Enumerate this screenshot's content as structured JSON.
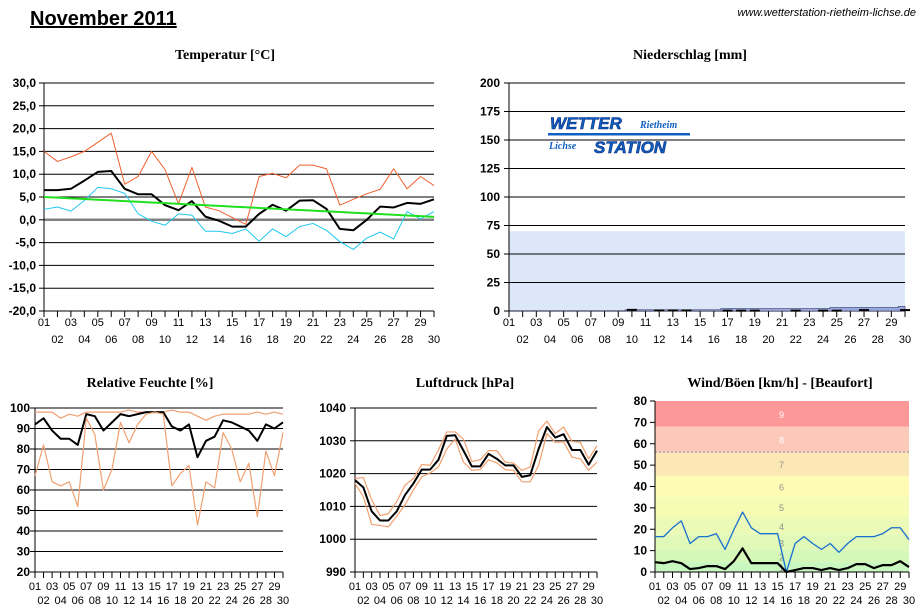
{
  "header": {
    "title": "November 2011",
    "url": "www.wetterstation-rietheim-lichse.de"
  },
  "logo": {
    "line1_big": "WETTER",
    "line1_small": "Rietheim",
    "line2_small": "Lichse",
    "line2_big": "STATION",
    "color": "#1060c0"
  },
  "chart_data": [
    {
      "id": "temperature",
      "type": "line",
      "title": "Temperatur [°C]",
      "xlabel": "",
      "ylabel": "",
      "x": [
        "01",
        "02",
        "03",
        "04",
        "05",
        "06",
        "07",
        "08",
        "09",
        "10",
        "11",
        "12",
        "13",
        "14",
        "15",
        "16",
        "17",
        "18",
        "19",
        "20",
        "21",
        "22",
        "23",
        "24",
        "25",
        "26",
        "27",
        "28",
        "29",
        "30"
      ],
      "ylim": [
        -20,
        30
      ],
      "yticks": [
        "30,0",
        "25,0",
        "20,0",
        "15,0",
        "10,0",
        "5,0",
        "0,0",
        "-5,0",
        "-10,0",
        "-15,0",
        "-20,0"
      ],
      "grid": true,
      "series": [
        {
          "name": "max",
          "color": "#f06030",
          "values": [
            15.0,
            12.8,
            13.8,
            15.0,
            17.0,
            19.0,
            7.8,
            9.5,
            15.0,
            11.0,
            3.5,
            11.5,
            2.8,
            2.0,
            0.5,
            -1.0,
            9.5,
            10.2,
            9.2,
            12.0,
            12.0,
            11.2,
            3.2,
            4.5,
            5.7,
            6.7,
            11.2,
            6.8,
            9.5,
            7.5
          ]
        },
        {
          "name": "mean",
          "color": "#000000",
          "values": [
            6.5,
            6.5,
            6.8,
            8.6,
            10.5,
            10.7,
            6.8,
            5.6,
            5.6,
            3.2,
            2.1,
            4.1,
            0.7,
            -0.2,
            -1.5,
            -1.5,
            1.3,
            3.3,
            2.0,
            4.2,
            4.3,
            2.4,
            -2.0,
            -2.3,
            0.0,
            2.9,
            2.7,
            3.7,
            3.5,
            4.5
          ]
        },
        {
          "name": "min",
          "color": "#20c8f0",
          "values": [
            2.3,
            2.8,
            1.9,
            4.2,
            7.1,
            6.8,
            5.8,
            1.3,
            -0.3,
            -1.2,
            1.3,
            1.0,
            -2.5,
            -2.5,
            -3.0,
            -2.0,
            -4.7,
            -2.0,
            -3.7,
            -1.5,
            -0.8,
            -2.3,
            -4.8,
            -6.5,
            -4.0,
            -2.7,
            -4.2,
            1.8,
            0.2,
            1.8
          ]
        },
        {
          "name": "trend",
          "color": "#20e020",
          "values": [
            5.0,
            4.85,
            4.7,
            4.55,
            4.4,
            4.25,
            4.1,
            3.95,
            3.8,
            3.65,
            3.5,
            3.35,
            3.2,
            3.05,
            2.9,
            2.75,
            2.6,
            2.45,
            2.3,
            2.15,
            2.0,
            1.85,
            1.7,
            1.55,
            1.4,
            1.25,
            1.1,
            0.95,
            0.8,
            0.65
          ]
        }
      ]
    },
    {
      "id": "precipitation",
      "type": "area",
      "title": "Niederschlag [mm]",
      "xlabel": "",
      "ylabel": "",
      "x": [
        "01",
        "02",
        "03",
        "04",
        "05",
        "06",
        "07",
        "08",
        "09",
        "10",
        "11",
        "12",
        "13",
        "14",
        "15",
        "16",
        "17",
        "18",
        "19",
        "20",
        "21",
        "22",
        "23",
        "24",
        "25",
        "26",
        "27",
        "28",
        "29",
        "30"
      ],
      "ylim": [
        0,
        200
      ],
      "yticks": [
        "200",
        "175",
        "150",
        "125",
        "100",
        "75",
        "50",
        "25",
        "0"
      ],
      "grid": true,
      "reference_area": {
        "name": "monthly normal",
        "value": 70,
        "color": "#dce8fa"
      },
      "series": [
        {
          "name": "cumulative",
          "color": "#9aa8e0",
          "values": [
            0,
            0,
            0,
            0,
            0,
            0,
            0,
            0,
            0,
            1.0,
            1.0,
            1.0,
            1.0,
            1.0,
            1.0,
            1.0,
            2.0,
            2.0,
            2.0,
            2.0,
            2.0,
            2.0,
            2.0,
            2.0,
            3.0,
            3.0,
            3.0,
            3.0,
            3.0,
            4.0
          ]
        },
        {
          "name": "daily",
          "color": "#000000",
          "values": [
            0,
            0,
            0,
            0,
            0,
            0,
            0,
            0,
            0,
            1.0,
            0,
            0.5,
            0.5,
            0.5,
            0,
            0,
            0.3,
            0.3,
            0.3,
            0,
            0,
            0.3,
            0,
            0.3,
            0.3,
            0,
            0.8,
            0,
            0,
            0.8
          ]
        }
      ]
    },
    {
      "id": "humidity",
      "type": "line",
      "title": "Relative Feuchte [%]",
      "xlabel": "",
      "ylabel": "",
      "x": [
        "01",
        "02",
        "03",
        "04",
        "05",
        "06",
        "07",
        "08",
        "09",
        "10",
        "11",
        "12",
        "13",
        "14",
        "15",
        "16",
        "17",
        "18",
        "19",
        "20",
        "21",
        "22",
        "23",
        "24",
        "25",
        "26",
        "27",
        "28",
        "29",
        "30"
      ],
      "ylim": [
        20,
        100
      ],
      "yticks": [
        "100",
        "90",
        "80",
        "70",
        "60",
        "50",
        "40",
        "30",
        "20"
      ],
      "grid": true,
      "series": [
        {
          "name": "max",
          "color": "#f0a070",
          "values": [
            98,
            98,
            98,
            95,
            97,
            96,
            98,
            98,
            98,
            98,
            98,
            99,
            98,
            98,
            98,
            98,
            99,
            98,
            98,
            96,
            94,
            96,
            97,
            97,
            97,
            97,
            98,
            97,
            98,
            97
          ]
        },
        {
          "name": "mean",
          "color": "#000000",
          "values": [
            92,
            95,
            89,
            85,
            85,
            82,
            97,
            96,
            89,
            93,
            97,
            96,
            97,
            98,
            98,
            98,
            91,
            89,
            92,
            76,
            84,
            86,
            94,
            93,
            91,
            89,
            84,
            92,
            90,
            93
          ]
        },
        {
          "name": "min",
          "color": "#f0a070",
          "values": [
            67,
            82,
            64,
            62,
            64,
            52,
            95,
            87,
            60,
            70,
            93,
            83,
            92,
            97,
            98,
            97,
            62,
            68,
            72,
            43,
            64,
            61,
            88,
            80,
            64,
            73,
            47,
            79,
            67,
            88
          ]
        }
      ]
    },
    {
      "id": "pressure",
      "type": "line",
      "title": "Luftdruck [hPa]",
      "xlabel": "",
      "ylabel": "",
      "x": [
        "01",
        "02",
        "03",
        "04",
        "05",
        "06",
        "07",
        "08",
        "09",
        "10",
        "11",
        "12",
        "13",
        "14",
        "15",
        "16",
        "17",
        "18",
        "19",
        "20",
        "21",
        "22",
        "23",
        "24",
        "25",
        "26",
        "27",
        "28",
        "29",
        "30"
      ],
      "ylim": [
        990,
        1040
      ],
      "yticks": [
        "1040",
        "1030",
        "1020",
        "1010",
        "1000",
        "990"
      ],
      "grid": true,
      "series": [
        {
          "name": "max",
          "color": "#f0a070",
          "values": [
            1018.5,
            1018.8,
            1012.0,
            1007.2,
            1007.8,
            1011.5,
            1016.5,
            1018.5,
            1022.8,
            1022.5,
            1027.2,
            1032.7,
            1032.7,
            1030.5,
            1023.7,
            1024.2,
            1027.0,
            1027.0,
            1023.5,
            1023.2,
            1021.0,
            1022.0,
            1033.0,
            1036.0,
            1032.2,
            1034.2,
            1029.8,
            1029.5,
            1024.5,
            1028.5
          ]
        },
        {
          "name": "mean",
          "color": "#000000",
          "values": [
            1018.0,
            1015.8,
            1008.5,
            1005.7,
            1005.7,
            1008.5,
            1013.5,
            1017.0,
            1021.2,
            1021.2,
            1024.2,
            1031.5,
            1031.7,
            1027.0,
            1022.2,
            1022.2,
            1026.0,
            1024.5,
            1022.5,
            1022.5,
            1019.0,
            1019.5,
            1027.5,
            1034.2,
            1031.0,
            1032.0,
            1027.2,
            1027.2,
            1022.7,
            1027.0
          ]
        },
        {
          "name": "min",
          "color": "#f0a070",
          "values": [
            1017.0,
            1013.0,
            1004.5,
            1004.2,
            1003.8,
            1007.0,
            1010.5,
            1015.0,
            1019.0,
            1020.2,
            1022.0,
            1027.5,
            1030.5,
            1023.5,
            1021.0,
            1021.2,
            1024.2,
            1023.3,
            1021.2,
            1021.0,
            1017.5,
            1017.5,
            1022.5,
            1032.2,
            1029.5,
            1029.7,
            1025.0,
            1024.5,
            1021.0,
            1023.5
          ]
        }
      ]
    },
    {
      "id": "wind",
      "type": "line",
      "title": "Wind/Böen [km/h] - [Beaufort]",
      "xlabel": "",
      "ylabel": "",
      "x": [
        "01",
        "02",
        "03",
        "04",
        "05",
        "06",
        "07",
        "08",
        "09",
        "10",
        "11",
        "12",
        "13",
        "14",
        "15",
        "16",
        "17",
        "18",
        "19",
        "20",
        "21",
        "22",
        "23",
        "24",
        "25",
        "26",
        "27",
        "28",
        "29",
        "30"
      ],
      "ylim": [
        0,
        87
      ],
      "yticks": [
        "80",
        "70",
        "60",
        "50",
        "40",
        "30",
        "20",
        "10",
        "0"
      ],
      "grid": false,
      "beaufort_bands": [
        {
          "label": "1",
          "from": 0,
          "to": 5,
          "color": "#c8f8c0"
        },
        {
          "label": "2",
          "from": 5,
          "to": 11,
          "color": "#d4f8b8"
        },
        {
          "label": "3",
          "from": 11,
          "to": 19,
          "color": "#e0f8b8"
        },
        {
          "label": "4",
          "from": 19,
          "to": 28,
          "color": "#ecfab8"
        },
        {
          "label": "5",
          "from": 28,
          "to": 38,
          "color": "#f6fcb4"
        },
        {
          "label": "6",
          "from": 38,
          "to": 49,
          "color": "#fefcb4"
        },
        {
          "label": "7",
          "from": 49,
          "to": 61,
          "color": "#fce8b4"
        },
        {
          "label": "8",
          "from": 61,
          "to": 74,
          "color": "#fcc8b8"
        },
        {
          "label": "9",
          "from": 74,
          "to": 87,
          "color": "#fcb8b0"
        }
      ],
      "top_band_color": "#fc9898",
      "series": [
        {
          "name": "gusts",
          "color": "#1870d0",
          "values": [
            18,
            18,
            22.5,
            26,
            14.5,
            18,
            18,
            19.5,
            11.5,
            21.5,
            30.5,
            22.5,
            19.5,
            19.5,
            19.5,
            0,
            14.5,
            18,
            14.5,
            11.5,
            14.5,
            10,
            14.5,
            18,
            18,
            18,
            19.5,
            22.5,
            22.5,
            16.5
          ]
        },
        {
          "name": "mean",
          "color": "#000000",
          "values": [
            5,
            4.5,
            5.5,
            4.5,
            1.5,
            2,
            3,
            3,
            1.5,
            5.5,
            12,
            4.5,
            4.5,
            4.5,
            4.5,
            0,
            1,
            2,
            2,
            1,
            2,
            1,
            2,
            4,
            4,
            2,
            3.5,
            3.5,
            5.5,
            2.5
          ]
        }
      ]
    }
  ]
}
